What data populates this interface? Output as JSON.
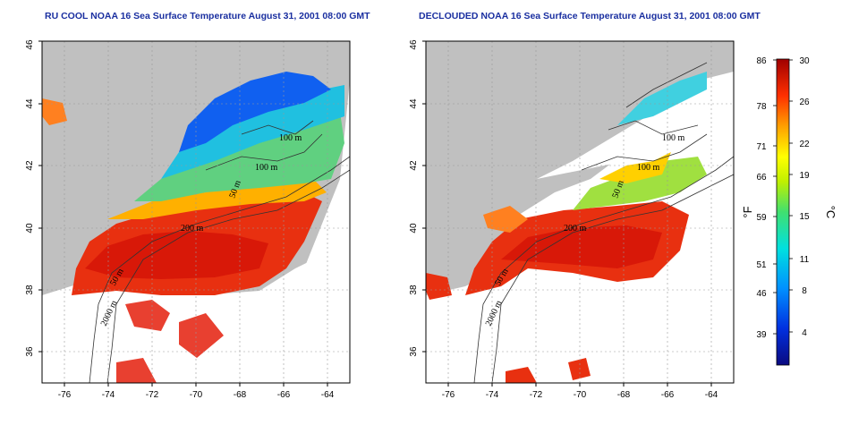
{
  "maps": [
    {
      "title": "RU COOL NOAA 16 Sea Surface Temperature August 31, 2001 08:00 GMT",
      "x_ticks": [
        "-76",
        "-74",
        "-72",
        "-70",
        "-68",
        "-66",
        "-64"
      ],
      "y_ticks": [
        "36",
        "38",
        "40",
        "42",
        "44",
        "46"
      ],
      "contour_labels": [
        "100 m",
        "100 m",
        "50 m",
        "200 m",
        "2000 m",
        "50 m"
      ]
    },
    {
      "title": "DECLOUDED NOAA 16 Sea Surface Temperature August 31, 2001 08:00 GMT",
      "x_ticks": [
        "-76",
        "-74",
        "-72",
        "-70",
        "-68",
        "-66",
        "-64"
      ],
      "y_ticks": [
        "36",
        "38",
        "40",
        "42",
        "44",
        "46"
      ],
      "contour_labels": [
        "100 m",
        "100 m",
        "50 m",
        "200 m",
        "2000 m",
        "50 m"
      ]
    }
  ],
  "colorbar": {
    "fahrenheit_label": "°F",
    "celsius_label": "°C",
    "fahrenheit_ticks": [
      "86",
      "78",
      "71",
      "66",
      "59",
      "51",
      "46",
      "39"
    ],
    "celsius_ticks": [
      "30",
      "26",
      "22",
      "19",
      "15",
      "11",
      "8",
      "4"
    ]
  },
  "colors": {
    "land": "#c0c0c0",
    "title": "#1a2fa0"
  }
}
